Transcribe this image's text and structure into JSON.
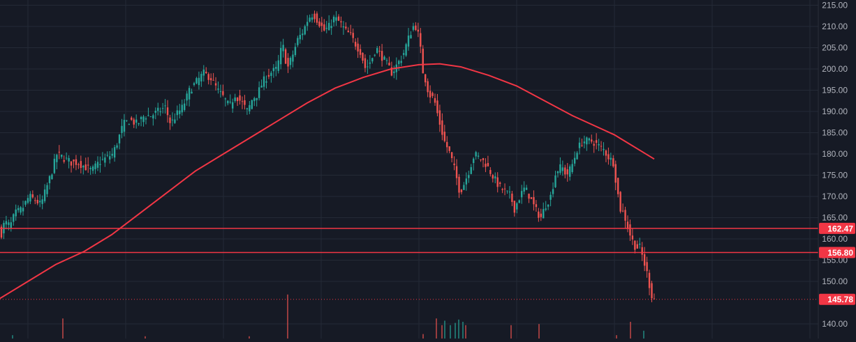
{
  "chart_data": {
    "type": "candlestick",
    "symbol": "",
    "title": "",
    "ylim": [
      138,
      216
    ],
    "y_ticks": [
      {
        "value": 215,
        "label": "215.00"
      },
      {
        "value": 210,
        "label": "210.00"
      },
      {
        "value": 205,
        "label": "205.00"
      },
      {
        "value": 200,
        "label": "200.00"
      },
      {
        "value": 195,
        "label": "195.00"
      },
      {
        "value": 190,
        "label": "190.00"
      },
      {
        "value": 185,
        "label": "185.00"
      },
      {
        "value": 180,
        "label": "180.00"
      },
      {
        "value": 175,
        "label": "175.00"
      },
      {
        "value": 170,
        "label": "170.00"
      },
      {
        "value": 165,
        "label": "165.00"
      },
      {
        "value": 160,
        "label": "160.00"
      },
      {
        "value": 155,
        "label": "155.00"
      },
      {
        "value": 150,
        "label": "150.00"
      },
      {
        "value": 140,
        "label": "140.00"
      }
    ],
    "grid": true,
    "horizontal_levels": [
      {
        "value": 162.47,
        "label": "162.47",
        "color": "#f23645"
      },
      {
        "value": 156.8,
        "label": "156.80",
        "color": "#f23645"
      }
    ],
    "last_price": {
      "value": 145.78,
      "label": "145.78",
      "color": "#f23645"
    },
    "price_path": [
      [
        0,
        163
      ],
      [
        5,
        161
      ],
      [
        10,
        164
      ],
      [
        18,
        163
      ],
      [
        25,
        166
      ],
      [
        35,
        167
      ],
      [
        45,
        170
      ],
      [
        55,
        169
      ],
      [
        62,
        168
      ],
      [
        70,
        172
      ],
      [
        78,
        176
      ],
      [
        85,
        180
      ],
      [
        95,
        179
      ],
      [
        105,
        178
      ],
      [
        115,
        178
      ],
      [
        125,
        177
      ],
      [
        135,
        176
      ],
      [
        145,
        178
      ],
      [
        155,
        179
      ],
      [
        165,
        180
      ],
      [
        172,
        183
      ],
      [
        180,
        187
      ],
      [
        190,
        188
      ],
      [
        200,
        187
      ],
      [
        210,
        189
      ],
      [
        220,
        189
      ],
      [
        230,
        190
      ],
      [
        240,
        191
      ],
      [
        248,
        187
      ],
      [
        255,
        189
      ],
      [
        265,
        191
      ],
      [
        275,
        195
      ],
      [
        285,
        197
      ],
      [
        295,
        199
      ],
      [
        305,
        198
      ],
      [
        315,
        195
      ],
      [
        325,
        193
      ],
      [
        332,
        191
      ],
      [
        340,
        194
      ],
      [
        350,
        192
      ],
      [
        358,
        190
      ],
      [
        365,
        193
      ],
      [
        372,
        194
      ],
      [
        380,
        197
      ],
      [
        390,
        199
      ],
      [
        400,
        200
      ],
      [
        408,
        206
      ],
      [
        415,
        200
      ],
      [
        422,
        203
      ],
      [
        430,
        207
      ],
      [
        438,
        209
      ],
      [
        445,
        212
      ],
      [
        452,
        213
      ],
      [
        460,
        211
      ],
      [
        468,
        209
      ],
      [
        475,
        210
      ],
      [
        482,
        212
      ],
      [
        490,
        211
      ],
      [
        498,
        209
      ],
      [
        505,
        208
      ],
      [
        512,
        206
      ],
      [
        520,
        204
      ],
      [
        527,
        200
      ],
      [
        535,
        202
      ],
      [
        542,
        205
      ],
      [
        550,
        203
      ],
      [
        558,
        201
      ],
      [
        565,
        199
      ],
      [
        572,
        201
      ],
      [
        580,
        203
      ],
      [
        588,
        207
      ],
      [
        595,
        210
      ],
      [
        600,
        210
      ],
      [
        605,
        206
      ],
      [
        608,
        200
      ],
      [
        612,
        198
      ],
      [
        618,
        194
      ],
      [
        625,
        193
      ],
      [
        632,
        188
      ],
      [
        640,
        183
      ],
      [
        648,
        180
      ],
      [
        655,
        176
      ],
      [
        662,
        171
      ],
      [
        668,
        173
      ],
      [
        675,
        176
      ],
      [
        683,
        180
      ],
      [
        690,
        179
      ],
      [
        698,
        178
      ],
      [
        705,
        176
      ],
      [
        712,
        174
      ],
      [
        720,
        172
      ],
      [
        728,
        171
      ],
      [
        735,
        170
      ],
      [
        740,
        167
      ],
      [
        748,
        170
      ],
      [
        755,
        172
      ],
      [
        762,
        170
      ],
      [
        770,
        167
      ],
      [
        778,
        165
      ],
      [
        785,
        168
      ],
      [
        792,
        170
      ],
      [
        800,
        176
      ],
      [
        808,
        177
      ],
      [
        815,
        175
      ],
      [
        822,
        177
      ],
      [
        830,
        181
      ],
      [
        838,
        183
      ],
      [
        845,
        183
      ],
      [
        852,
        183
      ],
      [
        860,
        182
      ],
      [
        868,
        181
      ],
      [
        876,
        179
      ],
      [
        882,
        178
      ],
      [
        887,
        172
      ],
      [
        892,
        167
      ],
      [
        897,
        166
      ],
      [
        902,
        163
      ],
      [
        908,
        160
      ],
      [
        914,
        158
      ],
      [
        920,
        158
      ],
      [
        925,
        155
      ],
      [
        930,
        152
      ],
      [
        935,
        148
      ],
      [
        938,
        146
      ]
    ],
    "moving_average": {
      "color": "#f23645",
      "points": [
        [
          0,
          146
        ],
        [
          40,
          150
        ],
        [
          80,
          154
        ],
        [
          120,
          157
        ],
        [
          160,
          161
        ],
        [
          200,
          166
        ],
        [
          240,
          171
        ],
        [
          280,
          176
        ],
        [
          320,
          180
        ],
        [
          360,
          184
        ],
        [
          400,
          188
        ],
        [
          440,
          192
        ],
        [
          480,
          195.5
        ],
        [
          520,
          198
        ],
        [
          560,
          200
        ],
        [
          600,
          201
        ],
        [
          630,
          201.2
        ],
        [
          660,
          200.5
        ],
        [
          700,
          198.5
        ],
        [
          740,
          196
        ],
        [
          780,
          192.5
        ],
        [
          820,
          189
        ],
        [
          860,
          186
        ],
        [
          880,
          184.5
        ],
        [
          900,
          182.5
        ],
        [
          920,
          180.5
        ],
        [
          937,
          178.8
        ]
      ]
    },
    "volume_max": 100,
    "volume_bars": [
      {
        "x": 18,
        "v": 6,
        "up": true
      },
      {
        "x": 90,
        "v": 36,
        "up": false
      },
      {
        "x": 208,
        "v": 4,
        "up": false
      },
      {
        "x": 357,
        "v": 4,
        "up": false
      },
      {
        "x": 412,
        "v": 79,
        "up": false
      },
      {
        "x": 606,
        "v": 8,
        "up": false
      },
      {
        "x": 625,
        "v": 36,
        "up": false
      },
      {
        "x": 633,
        "v": 24,
        "up": false
      },
      {
        "x": 637,
        "v": 32,
        "up": true
      },
      {
        "x": 645,
        "v": 24,
        "up": true
      },
      {
        "x": 652,
        "v": 28,
        "up": true
      },
      {
        "x": 657,
        "v": 34,
        "up": true
      },
      {
        "x": 663,
        "v": 30,
        "up": true
      },
      {
        "x": 667,
        "v": 24,
        "up": false
      },
      {
        "x": 732,
        "v": 24,
        "up": false
      },
      {
        "x": 772,
        "v": 26,
        "up": false
      },
      {
        "x": 883,
        "v": 6,
        "up": false
      },
      {
        "x": 903,
        "v": 30,
        "up": false
      },
      {
        "x": 922,
        "v": 14,
        "up": true
      }
    ],
    "colors": {
      "up": "#26a69a",
      "down": "#ef5350",
      "background": "#161a25",
      "grid": "#242a36",
      "axis_text": "#b2b5be"
    }
  }
}
